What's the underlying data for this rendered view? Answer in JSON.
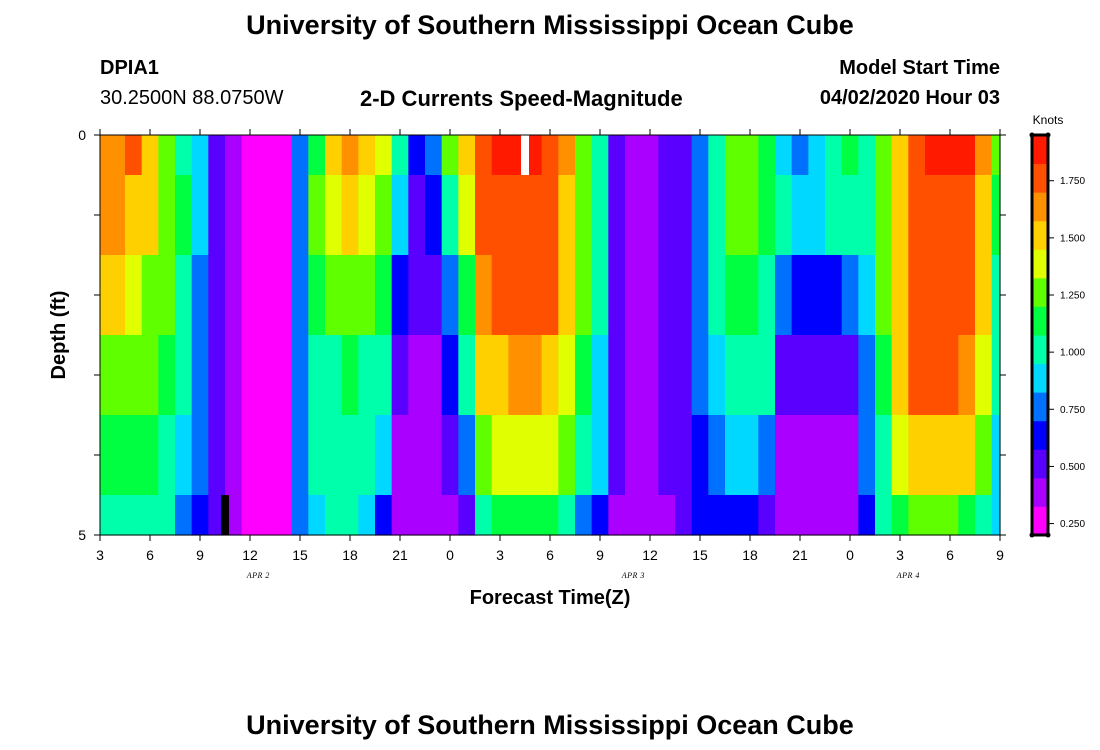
{
  "header": {
    "title": "University of Southern Mississippi Ocean Cube",
    "station_id": "DPIA1",
    "location": "30.2500N 88.0750W",
    "plot_title": "2-D Currents Speed-Magnitude",
    "model_start_label": "Model Start Time",
    "model_start_value": "04/02/2020 Hour 03"
  },
  "footer": {
    "title": "University of Southern Mississippi Ocean Cube"
  },
  "colors": {
    "scale": [
      "#ff00ff",
      "#aa00ff",
      "#5a00ff",
      "#0000ff",
      "#0070ff",
      "#00d8ff",
      "#00ffaa",
      "#00ff40",
      "#60ff00",
      "#e0ff00",
      "#ffd000",
      "#ff9000",
      "#ff5000",
      "#ff1a00"
    ],
    "marker_white": "#ffffff",
    "marker_black": "#000000"
  },
  "chart_data": {
    "type": "heatmap",
    "xlabel": "Forecast Time(Z)",
    "ylabel": "Depth (ft)",
    "colorbar_label": "Knots",
    "x_tick_labels": [
      "3",
      "6",
      "9",
      "12",
      "15",
      "18",
      "21",
      "0",
      "3",
      "6",
      "9",
      "12",
      "15",
      "18",
      "21",
      "0",
      "3",
      "6",
      "9"
    ],
    "date_labels": [
      {
        "text": "APR 2",
        "hours_from_start": 9.5
      },
      {
        "text": "APR 3",
        "hours_from_start": 32
      },
      {
        "text": "APR 4",
        "hours_from_start": 48.5
      }
    ],
    "x_range_hours": [
      0,
      54
    ],
    "y_tick_labels": [
      "0",
      "5"
    ],
    "y_range": [
      0,
      5
    ],
    "colorbar_ticks": [
      0.25,
      0.5,
      0.75,
      1.0,
      1.25,
      1.5,
      1.75
    ],
    "colorbar_tick_labels": [
      "0.250",
      "0.500",
      "0.750",
      "1.000",
      "1.250",
      "1.500",
      "1.750"
    ],
    "colorbar_range": [
      0.2,
      1.95
    ],
    "depth_levels": [
      0,
      1,
      2,
      3,
      4,
      5
    ],
    "time_hours": [
      0,
      1,
      2,
      3,
      4,
      5,
      6,
      7,
      8,
      9,
      10,
      11,
      12,
      13,
      14,
      15,
      16,
      17,
      18,
      19,
      20,
      21,
      22,
      23,
      24,
      25,
      26,
      27,
      28,
      29,
      30,
      31,
      32,
      33,
      34,
      35,
      36,
      37,
      38,
      39,
      40,
      41,
      42,
      43,
      44,
      45,
      46,
      47,
      48,
      49,
      50,
      51,
      52,
      53,
      54
    ],
    "speed_knots": [
      [
        1.6,
        1.68,
        1.7,
        1.55,
        1.25,
        1.05,
        0.85,
        0.55,
        0.4,
        0.25,
        0.22,
        0.25,
        0.7,
        1.15,
        1.55,
        1.65,
        1.55,
        1.4,
        1.0,
        0.65,
        0.75,
        1.2,
        1.55,
        1.8,
        1.87,
        1.9,
        1.9,
        1.8,
        1.6,
        1.3,
        1.0,
        0.55,
        0.4,
        0.4,
        0.45,
        0.55,
        0.75,
        1.05,
        1.25,
        1.3,
        1.1,
        0.85,
        0.75,
        0.9,
        1.05,
        1.1,
        1.05,
        1.2,
        1.55,
        1.8,
        1.88,
        1.9,
        1.85,
        1.65,
        1.2
      ],
      [
        1.58,
        1.62,
        1.55,
        1.5,
        1.3,
        1.1,
        0.85,
        0.55,
        0.4,
        0.25,
        0.22,
        0.25,
        0.7,
        1.2,
        1.4,
        1.45,
        1.4,
        1.3,
        0.85,
        0.55,
        0.6,
        1.0,
        1.35,
        1.7,
        1.78,
        1.82,
        1.82,
        1.78,
        1.55,
        1.25,
        1.0,
        0.55,
        0.4,
        0.4,
        0.45,
        0.55,
        0.7,
        1.0,
        1.2,
        1.25,
        1.15,
        0.95,
        0.9,
        0.9,
        0.95,
        1.0,
        1.05,
        1.2,
        1.55,
        1.78,
        1.8,
        1.8,
        1.75,
        1.55,
        1.1
      ],
      [
        1.45,
        1.45,
        1.4,
        1.32,
        1.2,
        1.05,
        0.8,
        0.55,
        0.4,
        0.25,
        0.22,
        0.25,
        0.7,
        1.1,
        1.22,
        1.25,
        1.2,
        1.1,
        0.65,
        0.5,
        0.5,
        0.8,
        1.15,
        1.6,
        1.7,
        1.75,
        1.75,
        1.7,
        1.45,
        1.2,
        0.95,
        0.55,
        0.4,
        0.4,
        0.45,
        0.55,
        0.7,
        0.95,
        1.1,
        1.15,
        1.05,
        0.7,
        0.6,
        0.6,
        0.65,
        0.7,
        0.9,
        1.2,
        1.55,
        1.75,
        1.78,
        1.78,
        1.72,
        1.45,
        1.05
      ],
      [
        1.3,
        1.3,
        1.28,
        1.22,
        1.1,
        0.95,
        0.75,
        0.55,
        0.4,
        0.25,
        0.22,
        0.25,
        0.7,
        1.0,
        1.05,
        1.08,
        1.05,
        0.95,
        0.5,
        0.4,
        0.4,
        0.6,
        0.95,
        1.45,
        1.55,
        1.6,
        1.6,
        1.55,
        1.35,
        1.15,
        0.9,
        0.55,
        0.4,
        0.4,
        0.45,
        0.55,
        0.7,
        0.9,
        1.0,
        1.05,
        0.95,
        0.55,
        0.5,
        0.5,
        0.5,
        0.55,
        0.8,
        1.15,
        1.5,
        1.7,
        1.72,
        1.72,
        1.65,
        1.35,
        0.95
      ],
      [
        1.15,
        1.15,
        1.12,
        1.08,
        1.0,
        0.85,
        0.7,
        0.55,
        0.4,
        0.25,
        0.22,
        0.25,
        0.7,
        0.95,
        0.98,
        1.0,
        0.98,
        0.85,
        0.4,
        0.35,
        0.35,
        0.45,
        0.75,
        1.25,
        1.35,
        1.4,
        1.4,
        1.35,
        1.2,
        1.0,
        0.85,
        0.5,
        0.4,
        0.4,
        0.45,
        0.55,
        0.65,
        0.8,
        0.85,
        0.85,
        0.75,
        0.4,
        0.38,
        0.38,
        0.38,
        0.4,
        0.7,
        1.05,
        1.4,
        1.55,
        1.55,
        1.55,
        1.45,
        1.2,
        0.9
      ],
      [
        1.05,
        1.05,
        1.05,
        1.02,
        0.95,
        0.8,
        0.65,
        0.5,
        0.38,
        0.25,
        0.22,
        0.25,
        0.7,
        0.92,
        0.95,
        0.95,
        0.9,
        0.65,
        0.35,
        0.33,
        0.33,
        0.38,
        0.55,
        1.0,
        1.1,
        1.15,
        1.15,
        1.1,
        1.0,
        0.8,
        0.65,
        0.4,
        0.33,
        0.33,
        0.4,
        0.5,
        0.6,
        0.65,
        0.65,
        0.6,
        0.55,
        0.35,
        0.33,
        0.33,
        0.33,
        0.33,
        0.6,
        0.95,
        1.15,
        1.2,
        1.2,
        1.2,
        1.15,
        1.05,
        0.85
      ]
    ],
    "markers": [
      {
        "color": "white",
        "hour": 25.5,
        "depth_top": 0,
        "depth_bottom": 0.5
      },
      {
        "color": "black",
        "hour": 7.5,
        "depth_top": 4.5,
        "depth_bottom": 5
      }
    ]
  }
}
